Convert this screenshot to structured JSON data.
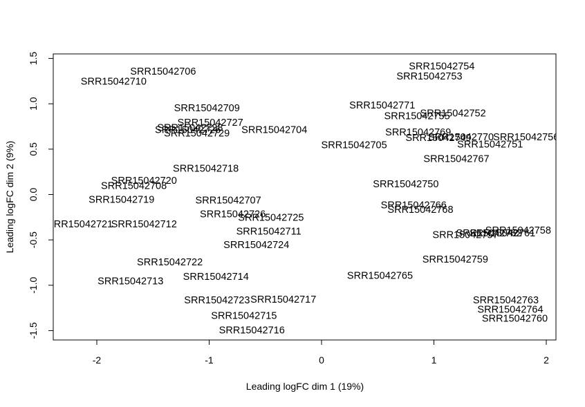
{
  "chart_data": {
    "type": "scatter",
    "title": "",
    "xlabel": "Leading logFC dim 1 (19%)",
    "ylabel": "Leading logFC dim 2 (9%)",
    "xlim": [
      -2.4,
      2.1
    ],
    "ylim": [
      -1.6,
      1.55
    ],
    "xticks": [
      -2,
      -1,
      0,
      1,
      2
    ],
    "yticks": [
      -1.5,
      -1.0,
      -0.5,
      0.0,
      0.5,
      1.0,
      1.5
    ],
    "xtick_labels": [
      "-2",
      "-1",
      "0",
      "1",
      "2"
    ],
    "ytick_labels": [
      "-1.5",
      "-1.0",
      "-0.5",
      "0.0",
      "0.5",
      "1.0",
      "1.5"
    ],
    "grid": false,
    "marker": "text label",
    "points": [
      {
        "label": "SRR15042706",
        "x": -1.41,
        "y": 1.35
      },
      {
        "label": "SRR15042710",
        "x": -1.85,
        "y": 1.24
      },
      {
        "label": "SRR15042754",
        "x": 1.07,
        "y": 1.41
      },
      {
        "label": "SRR15042753",
        "x": 0.96,
        "y": 1.3
      },
      {
        "label": "SRR15042709",
        "x": -1.02,
        "y": 0.95
      },
      {
        "label": "SRR15042771",
        "x": 0.54,
        "y": 0.98
      },
      {
        "label": "SRR15042752",
        "x": 1.17,
        "y": 0.89
      },
      {
        "label": "SRR15042755",
        "x": 0.85,
        "y": 0.86
      },
      {
        "label": "SRR15042727",
        "x": -0.99,
        "y": 0.79
      },
      {
        "label": "SRR15042728",
        "x": -1.17,
        "y": 0.73
      },
      {
        "label": "SRR15042726",
        "x": -1.19,
        "y": 0.71
      },
      {
        "label": "SRR15042729",
        "x": -1.11,
        "y": 0.67
      },
      {
        "label": "SRR15042704",
        "x": -0.42,
        "y": 0.71
      },
      {
        "label": "SRR15042769",
        "x": 0.86,
        "y": 0.68
      },
      {
        "label": "SRR15042770",
        "x": 1.24,
        "y": 0.63
      },
      {
        "label": "SRR15042749",
        "x": 1.04,
        "y": 0.62
      },
      {
        "label": "SRR15042756",
        "x": 1.82,
        "y": 0.63
      },
      {
        "label": "SRR15042751",
        "x": 1.5,
        "y": 0.55
      },
      {
        "label": "SRR15042705",
        "x": 0.29,
        "y": 0.54
      },
      {
        "label": "SRR15042767",
        "x": 1.2,
        "y": 0.39
      },
      {
        "label": "SRR15042718",
        "x": -1.03,
        "y": 0.28
      },
      {
        "label": "SRR15042720",
        "x": -1.58,
        "y": 0.15
      },
      {
        "label": "SRR15042708",
        "x": -1.67,
        "y": 0.09
      },
      {
        "label": "SRR15042750",
        "x": 0.75,
        "y": 0.11
      },
      {
        "label": "SRR15042719",
        "x": -1.78,
        "y": -0.06
      },
      {
        "label": "SRR15042707",
        "x": -0.83,
        "y": -0.07
      },
      {
        "label": "SRR15042766",
        "x": 0.82,
        "y": -0.12
      },
      {
        "label": "SRR15042768",
        "x": 0.88,
        "y": -0.17
      },
      {
        "label": "SRR15042726",
        "x": -0.79,
        "y": -0.22
      },
      {
        "label": "SRR15042725",
        "x": -0.45,
        "y": -0.26
      },
      {
        "label": "SRR15042721",
        "x": -2.15,
        "y": -0.33
      },
      {
        "label": "SRR15042712",
        "x": -1.58,
        "y": -0.33
      },
      {
        "label": "SRR15042711",
        "x": -0.47,
        "y": -0.41
      },
      {
        "label": "SRR15042758",
        "x": 1.75,
        "y": -0.4
      },
      {
        "label": "SRR15042761",
        "x": 1.61,
        "y": -0.43
      },
      {
        "label": "SRR15042762",
        "x": 1.49,
        "y": -0.43
      },
      {
        "label": "SRR15042757",
        "x": 1.28,
        "y": -0.45
      },
      {
        "label": "SRR15042724",
        "x": -0.58,
        "y": -0.56
      },
      {
        "label": "SRR15042759",
        "x": 1.19,
        "y": -0.72
      },
      {
        "label": "SRR15042722",
        "x": -1.35,
        "y": -0.75
      },
      {
        "label": "SRR15042713",
        "x": -1.7,
        "y": -0.96
      },
      {
        "label": "SRR15042714",
        "x": -0.94,
        "y": -0.91
      },
      {
        "label": "SRR15042765",
        "x": 0.52,
        "y": -0.9
      },
      {
        "label": "SRR15042723",
        "x": -0.93,
        "y": -1.17
      },
      {
        "label": "SRR15042717",
        "x": -0.34,
        "y": -1.16
      },
      {
        "label": "SRR15042763",
        "x": 1.64,
        "y": -1.17
      },
      {
        "label": "SRR15042764",
        "x": 1.68,
        "y": -1.27
      },
      {
        "label": "SRR15042760",
        "x": 1.72,
        "y": -1.37
      },
      {
        "label": "SRR15042715",
        "x": -0.69,
        "y": -1.34
      },
      {
        "label": "SRR15042716",
        "x": -0.62,
        "y": -1.5
      }
    ]
  }
}
